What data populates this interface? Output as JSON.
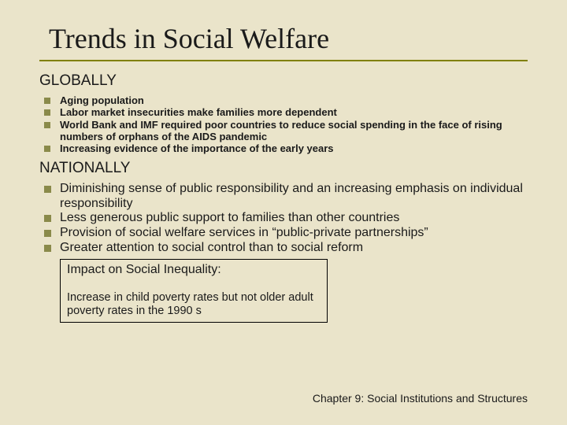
{
  "title": "Trends in Social Welfare",
  "sections": {
    "global": {
      "heading": "GLOBALLY",
      "items": [
        "Aging population",
        "Labor market insecurities make families more dependent",
        "World Bank and IMF required poor countries to reduce social spending in the face of rising numbers of orphans of the AIDS pandemic",
        "Increasing evidence of the importance of the early years"
      ]
    },
    "national": {
      "heading": "NATIONALLY",
      "items": [
        "Diminishing sense of public responsibility and an increasing emphasis on individual responsibility",
        "Less generous public support to families than other countries",
        "Provision of social welfare services in “public-private partnerships”",
        "Greater attention to social control than to social reform"
      ]
    }
  },
  "impact": {
    "title": "Impact on Social Inequality:",
    "body": "Increase in child poverty rates but not older adult poverty rates in the 1990 s"
  },
  "footer": "Chapter 9: Social Institutions and Structures",
  "colors": {
    "background": "#eae4ca",
    "divider": "#808000",
    "bullet": "#8a8a4a",
    "text": "#1a1a1a"
  }
}
